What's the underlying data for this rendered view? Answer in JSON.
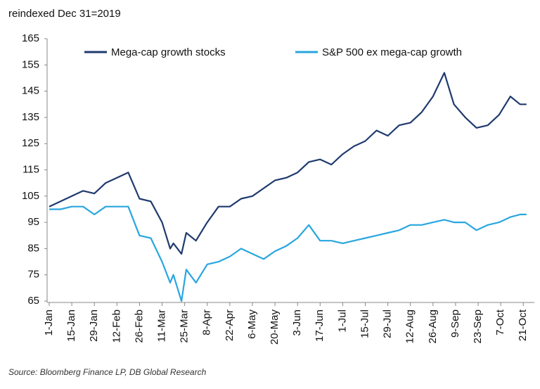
{
  "chart_data": {
    "type": "line",
    "title": "reindexed Dec 31=2019",
    "source": "Source: Bloomberg Finance LP, DB Global Research",
    "x": [
      "1-Jan",
      "8-Jan",
      "15-Jan",
      "22-Jan",
      "29-Jan",
      "5-Feb",
      "12-Feb",
      "19-Feb",
      "26-Feb",
      "4-Mar",
      "11-Mar",
      "16-Mar",
      "18-Mar",
      "23-Mar",
      "26-Mar",
      "1-Apr",
      "8-Apr",
      "15-Apr",
      "22-Apr",
      "29-Apr",
      "6-May",
      "13-May",
      "20-May",
      "27-May",
      "3-Jun",
      "10-Jun",
      "17-Jun",
      "24-Jun",
      "1-Jul",
      "8-Jul",
      "15-Jul",
      "22-Jul",
      "29-Jul",
      "5-Aug",
      "12-Aug",
      "19-Aug",
      "26-Aug",
      "2-Sep",
      "8-Sep",
      "15-Sep",
      "22-Sep",
      "29-Sep",
      "6-Oct",
      "13-Oct",
      "19-Oct",
      "23-Oct"
    ],
    "series": [
      {
        "name": "Mega-cap growth stocks",
        "color": "#1f3a6e",
        "values": [
          101,
          103,
          105,
          107,
          106,
          110,
          112,
          114,
          104,
          103,
          95,
          85,
          87,
          83,
          91,
          88,
          95,
          101,
          101,
          104,
          105,
          108,
          111,
          112,
          114,
          118,
          119,
          117,
          121,
          124,
          126,
          130,
          128,
          132,
          133,
          137,
          143,
          152,
          140,
          135,
          131,
          132,
          136,
          143,
          140,
          140
        ]
      },
      {
        "name": "S&P 500 ex mega-cap growth",
        "color": "#29a6e0",
        "values": [
          100,
          100,
          101,
          101,
          98,
          101,
          101,
          101,
          90,
          89,
          80,
          72,
          75,
          65,
          77,
          72,
          79,
          80,
          82,
          85,
          83,
          81,
          84,
          86,
          89,
          94,
          88,
          88,
          87,
          88,
          89,
          90,
          91,
          92,
          94,
          94,
          95,
          96,
          95,
          95,
          92,
          94,
          95,
          97,
          98,
          98
        ]
      }
    ],
    "xlim": [
      "1-Jan",
      "27-Oct"
    ],
    "xticks": [
      "1-Jan",
      "15-Jan",
      "29-Jan",
      "12-Feb",
      "26-Feb",
      "11-Mar",
      "25-Mar",
      "8-Apr",
      "22-Apr",
      "6-May",
      "20-May",
      "3-Jun",
      "17-Jun",
      "1-Jul",
      "15-Jul",
      "29-Jul",
      "12-Aug",
      "26-Aug",
      "9-Sep",
      "23-Sep",
      "7-Oct",
      "21-Oct"
    ],
    "ylim": [
      65,
      165
    ],
    "yticks": [
      65,
      75,
      85,
      95,
      105,
      115,
      125,
      135,
      145,
      155,
      165
    ],
    "legend": "top"
  }
}
